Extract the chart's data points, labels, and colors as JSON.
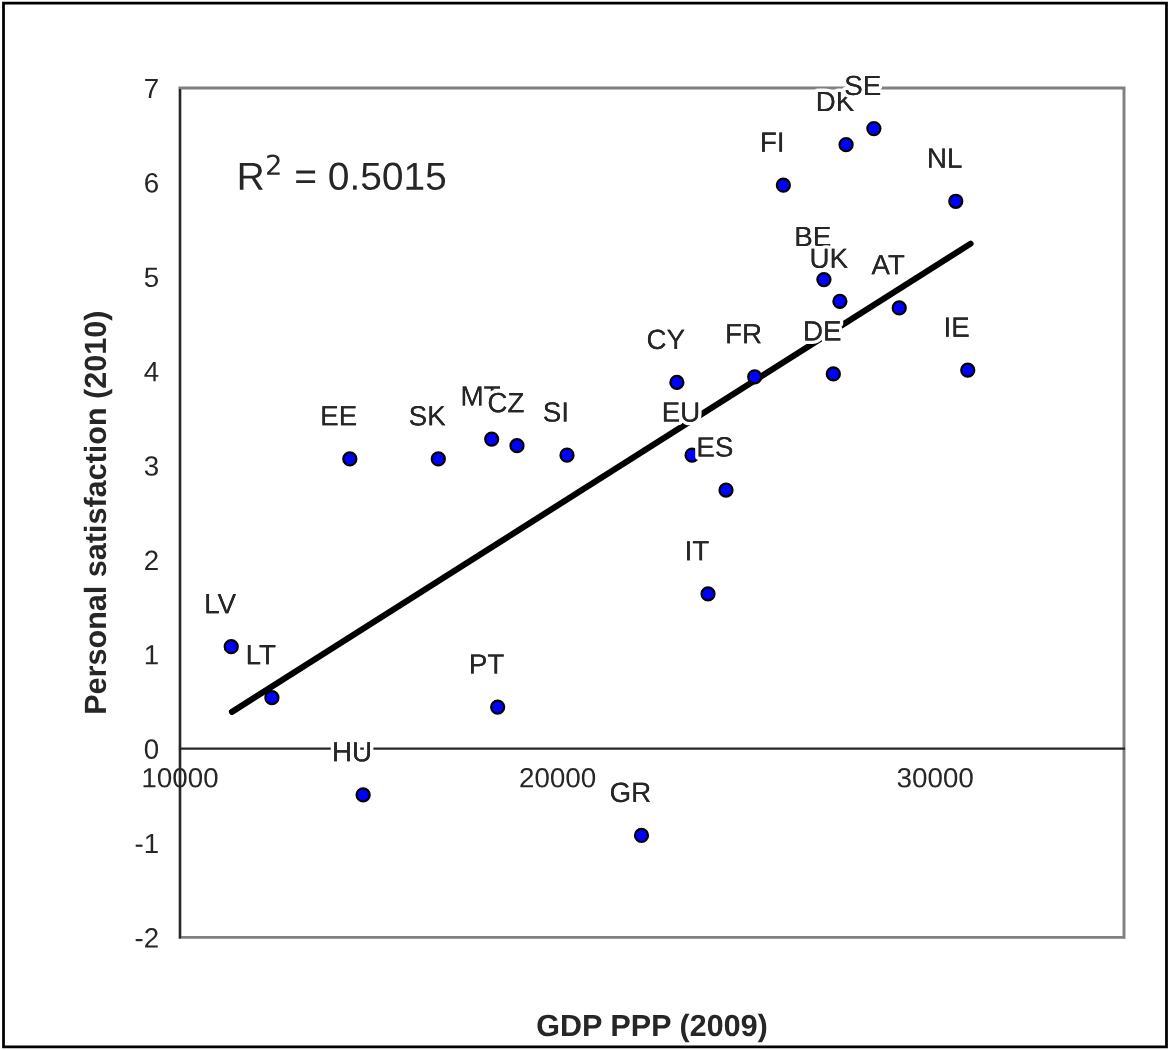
{
  "chart_data": {
    "type": "scatter",
    "xlabel": "GDP PPP (2009)",
    "ylabel": "Personal satisfaction (2010)",
    "xlim": [
      10000,
      35000
    ],
    "xticks": [
      10000,
      20000,
      30000
    ],
    "ylim": [
      -2,
      7
    ],
    "yticks": [
      -2,
      -1,
      0,
      1,
      2,
      3,
      4,
      5,
      6,
      7
    ],
    "grid": false,
    "legend": false,
    "series": [
      {
        "marker": "circle",
        "color": "#0000ff",
        "x": [
          14497,
          16841,
          18254,
          18925,
          20249,
          25979,
          27640,
          28376,
          30545,
          27053,
          27476,
          29048,
          27302,
          30862,
          23159,
          25220,
          23561,
          24460,
          11357,
          12434,
          14850,
          18413,
          22222,
          23984
        ],
        "values": [
          3.07,
          3.07,
          3.28,
          3.21,
          3.11,
          5.97,
          6.4,
          6.57,
          5.8,
          4.97,
          4.74,
          4.67,
          3.97,
          4.01,
          3.88,
          3.94,
          3.11,
          2.74,
          1.08,
          0.54,
          -0.49,
          0.44,
          -0.92,
          1.64
        ]
      },
      {
        "type": "line",
        "marker": "none",
        "color": "#000000",
        "x": [
          11376,
          30935
        ],
        "values": [
          0.39,
          5.35
        ]
      }
    ],
    "annotations": [
      {
        "text": "EE",
        "x": 14497,
        "y": 3.07
      },
      {
        "text": "SK",
        "x": 16841,
        "y": 3.07
      },
      {
        "text": "MT",
        "x": 18254,
        "y": 3.28
      },
      {
        "text": "CZ",
        "x": 18925,
        "y": 3.21
      },
      {
        "text": "SI",
        "x": 20249,
        "y": 3.11
      },
      {
        "text": "FI",
        "x": 25979,
        "y": 5.97
      },
      {
        "text": "DK",
        "x": 27640,
        "y": 6.4
      },
      {
        "text": "SE",
        "x": 28376,
        "y": 6.57
      },
      {
        "text": "NL",
        "x": 30545,
        "y": 5.8
      },
      {
        "text": "BE",
        "x": 27053,
        "y": 4.97
      },
      {
        "text": "UK",
        "x": 27476,
        "y": 4.74
      },
      {
        "text": "AT",
        "x": 29048,
        "y": 4.67
      },
      {
        "text": "DE",
        "x": 27302,
        "y": 3.97
      },
      {
        "text": "IE",
        "x": 30862,
        "y": 4.01
      },
      {
        "text": "CY",
        "x": 23159,
        "y": 3.88
      },
      {
        "text": "FR",
        "x": 25220,
        "y": 3.94
      },
      {
        "text": "EU",
        "x": 23561,
        "y": 3.11
      },
      {
        "text": "ES",
        "x": 24460,
        "y": 2.74
      },
      {
        "text": "LV",
        "x": 11357,
        "y": 1.08
      },
      {
        "text": "LT",
        "x": 12434,
        "y": 0.54
      },
      {
        "text": "HU",
        "x": 14850,
        "y": -0.49
      },
      {
        "text": "PT",
        "x": 18413,
        "y": 0.44
      },
      {
        "text": "GR",
        "x": 22222,
        "y": -0.92
      },
      {
        "text": "IT",
        "x": 23984,
        "y": 1.64
      },
      "R$^{2}$ = 0.5015"
    ]
  }
}
